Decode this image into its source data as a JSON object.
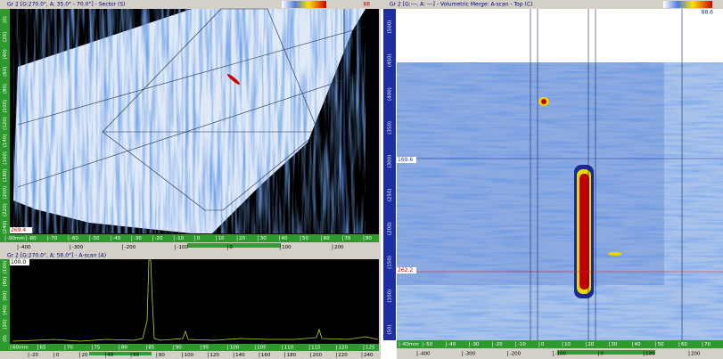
{
  "sector": {
    "title": "Gr 2 [G:270.0°, A: 35.0° - 70.0°] - Sector (S)",
    "badge": "88",
    "corner_value": "269.4",
    "left_scale": [
      "(0)",
      "(20)",
      "(40)",
      "(60)",
      "(80)",
      "(100)",
      "(120)",
      "(140)",
      "(160)",
      "(180)",
      "(200)",
      "(220)",
      "(240)"
    ],
    "x_scale_top": [
      "-90mm",
      "-80",
      "-70",
      "-60",
      "-50",
      "-40",
      "-30",
      "-20",
      "-10",
      "0",
      "10",
      "20",
      "30",
      "40",
      "50",
      "60",
      "70",
      "80"
    ],
    "x_scale_bottom": [
      "-400",
      "-300",
      "-200",
      "-100",
      "0",
      "100",
      "200"
    ]
  },
  "ascan": {
    "title": "Gr 2 [G:270.0°, A: 56.0°] - A-scan (A)",
    "badge": "100.0",
    "left_scale": [
      "(100)",
      "(80)",
      "(60)",
      "(40)",
      "(20)",
      "(0)"
    ],
    "x_scale_top": [
      "60mm",
      "65",
      "70",
      "75",
      "80",
      "85",
      "90",
      "95",
      "100",
      "105",
      "110",
      "115",
      "120",
      "125"
    ],
    "x_scale_bottom": [
      "-20",
      "0",
      "20",
      "40",
      "60",
      "80",
      "100",
      "120",
      "140",
      "160",
      "180",
      "200",
      "220",
      "240"
    ]
  },
  "cscan": {
    "title": "Gr 2 [G:---, A: ---] - Volumetric Merge: A-scan - Top (C)",
    "badge": "88.6",
    "cursor_top": "169.6",
    "cursor_bottom": "262.2",
    "left_scale": [
      "(500)",
      "(450)",
      "(400)",
      "(350)",
      "(300)",
      "(250)",
      "(200)",
      "(150)",
      "(100)",
      "(50)"
    ],
    "x_scale_top": [
      "-60mm",
      "-50",
      "-40",
      "-30",
      "-20",
      "-10",
      "0",
      "10",
      "20",
      "30",
      "40",
      "50",
      "60",
      "70"
    ],
    "x_scale_bottom": [
      "-400",
      "-300",
      "-200",
      "-100",
      "0",
      "100",
      "200"
    ]
  }
}
